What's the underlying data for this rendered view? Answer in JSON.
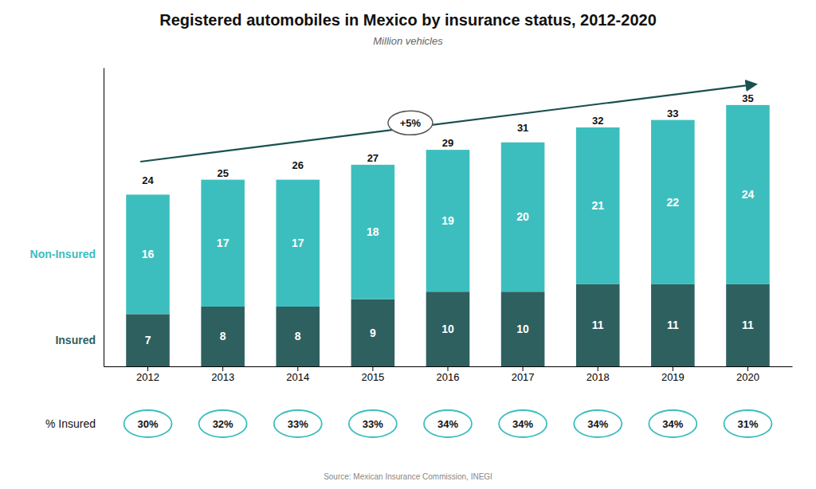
{
  "chart_data": {
    "type": "bar",
    "title": "Registered automobiles in Mexico by insurance status, 2012-2020",
    "subtitle": "Million vehicles",
    "source": "Source: Mexican Insurance Commission, INEGI",
    "categories": [
      "2012",
      "2013",
      "2014",
      "2015",
      "2016",
      "2017",
      "2018",
      "2019",
      "2020"
    ],
    "series": [
      {
        "name": "Insured",
        "color": "#2e6060",
        "values": [
          7,
          8,
          8,
          9,
          10,
          10,
          11,
          11,
          11
        ]
      },
      {
        "name": "Non-Insured",
        "color": "#3dbebe",
        "values": [
          16,
          17,
          17,
          18,
          19,
          20,
          21,
          22,
          24
        ]
      }
    ],
    "stacked": true,
    "data_labels": true,
    "totals": [
      24,
      25,
      26,
      27,
      29,
      31,
      32,
      33,
      35
    ],
    "pct_insured": {
      "title": "% Insured",
      "values": [
        30,
        32,
        33,
        33,
        34,
        34,
        34,
        34,
        31
      ],
      "value_labels": [
        "30%",
        "32%",
        "33%",
        "33%",
        "34%",
        "34%",
        "34%",
        "34%",
        "31%"
      ]
    },
    "annotation": "+5%",
    "ylim": [
      0,
      40
    ],
    "grid": false,
    "legend": "left",
    "tick_labels": "x"
  }
}
